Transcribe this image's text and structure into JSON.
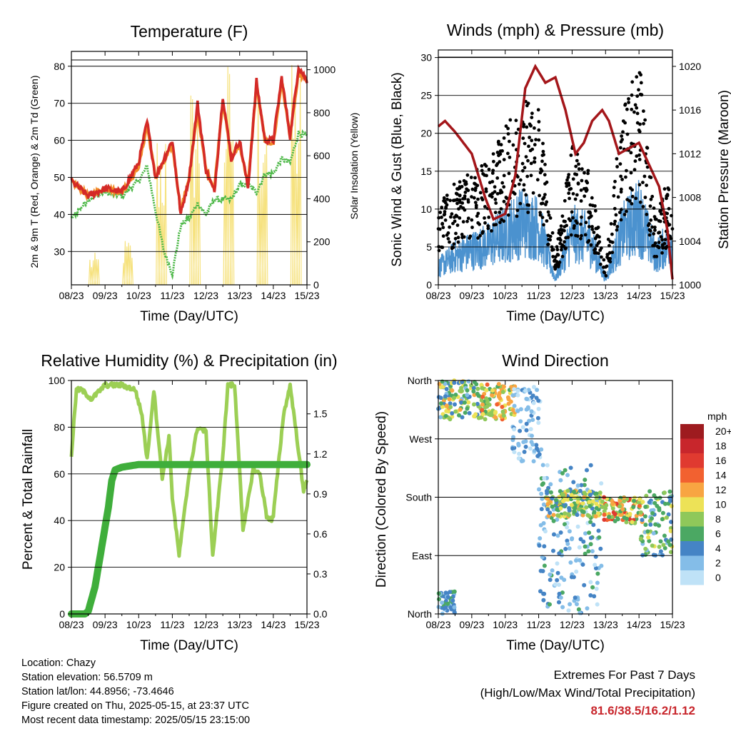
{
  "time_ticks": [
    "08/23",
    "09/23",
    "10/23",
    "11/23",
    "12/23",
    "13/23",
    "14/23",
    "15/23"
  ],
  "info": {
    "location": "Location: Chazy",
    "elevation": "Station elevation: 56.5709 m",
    "latlon": "Station lat/lon: 44.8956; -73.4646",
    "created": "Figure created on Thu, 2025-05-15, at 23:37 UTC",
    "recent": "Most recent data timestamp: 2025/05/15 23:15:00"
  },
  "extremes": {
    "title1": "Extremes For Past 7 Days",
    "title2": "(High/Low/Max Wind/Total Precipitation)",
    "values": "81.6/38.5/16.2/1.12"
  },
  "colors": {
    "temp_2m": "#d42a27",
    "temp_9m": "#f28c28",
    "dewpoint": "#4db848",
    "solar": "#f6e27f",
    "wind": "#4b92cf",
    "gust": "#000000",
    "pressure": "#a4161a",
    "rh": "#9ccf55",
    "precip": "#3fae3b"
  },
  "chart_data": [
    {
      "type": "line",
      "title": "Temperature (F)",
      "xlabel": "Time (Day/UTC)",
      "ylabel": "2m & 9m T (Red, Orange) & 2m Td (Green)",
      "ylabel_right": "Solar Insolation (Yellow)",
      "ylim": [
        21,
        84
      ],
      "yticks": [
        30,
        40,
        50,
        60,
        70,
        80
      ],
      "ylim_right": [
        0,
        1085
      ],
      "yticks_right": [
        0,
        200,
        400,
        600,
        800,
        1000
      ],
      "x_days": [
        0,
        0.5,
        1,
        1.5,
        2,
        2.25,
        2.5,
        2.75,
        3,
        3.25,
        3.5,
        3.75,
        4,
        4.25,
        4.5,
        4.75,
        5,
        5.25,
        5.5,
        5.75,
        6,
        6.25,
        6.5,
        6.75,
        7
      ],
      "series": [
        {
          "name": "2m T",
          "values": [
            49,
            45,
            47,
            46,
            54,
            65,
            50,
            55,
            60,
            40,
            50,
            70,
            52,
            46,
            72,
            55,
            60,
            47,
            76,
            60,
            60,
            77,
            61,
            80,
            76
          ]
        },
        {
          "name": "9m T",
          "values": [
            49,
            45,
            47,
            46,
            53,
            64,
            50,
            54,
            59,
            41,
            50,
            68,
            52,
            47,
            71,
            55,
            59,
            48,
            75,
            60,
            59,
            76,
            61,
            78,
            76
          ]
        },
        {
          "name": "2m Td",
          "values": [
            39,
            44,
            46,
            45,
            49,
            53,
            41,
            30,
            24,
            37,
            39,
            43,
            40,
            44,
            44,
            44,
            48,
            48,
            46,
            51,
            51,
            55,
            54,
            62,
            61
          ]
        },
        {
          "name": "Solar",
          "daily_peak": [
            150,
            220,
            760,
            960,
            1070,
            1020,
            1040,
            1000
          ]
        }
      ]
    },
    {
      "type": "scatter",
      "title": "Winds (mph) & Pressure (mb)",
      "xlabel": "Time (Day/UTC)",
      "ylabel": "Sonic Wind & Gust (Blue, Black)",
      "ylabel_right": "Station Pressure (Maroon)",
      "ylim": [
        0,
        31
      ],
      "yticks": [
        0,
        5,
        10,
        15,
        20,
        25,
        30
      ],
      "ylim_right": [
        1000,
        1021.5
      ],
      "yticks_right": [
        1000,
        1004,
        1008,
        1012,
        1016,
        1020
      ],
      "pressure": {
        "x_days": [
          0,
          0.2,
          0.5,
          1,
          1.4,
          1.65,
          2,
          2.3,
          2.6,
          2.9,
          3.2,
          3.5,
          3.8,
          4.1,
          4.35,
          4.6,
          4.9,
          5.1,
          5.4,
          5.7,
          6,
          6.3,
          6.6,
          6.85,
          7
        ],
        "values": [
          1014.5,
          1015,
          1014,
          1012,
          1008,
          1006,
          1006.5,
          1010,
          1018,
          1020,
          1018.5,
          1019,
          1016,
          1012,
          1013,
          1015,
          1016,
          1015,
          1012,
          1012.5,
          1013,
          1011,
          1009,
          1005,
          1000.5
        ]
      },
      "wind_envelope": {
        "x_days": [
          0,
          0.5,
          1,
          1.5,
          2,
          2.5,
          3,
          3.5,
          4,
          4.5,
          5,
          5.5,
          6,
          6.5,
          7
        ],
        "values": [
          3,
          5,
          6,
          7,
          9,
          11,
          10,
          1,
          9,
          8,
          1,
          9,
          12,
          5,
          8
        ]
      },
      "gust_envelope": {
        "x_days": [
          0,
          0.5,
          1,
          1.5,
          2,
          2.5,
          3,
          3.5,
          4,
          4.5,
          5,
          5.5,
          6,
          6.5,
          7
        ],
        "values": [
          9,
          11,
          12,
          13,
          17,
          20,
          19,
          3,
          15,
          12,
          2,
          19,
          24,
          7,
          13
        ]
      }
    },
    {
      "type": "line",
      "title": "Relative Humidity (%) & Precipitation (in)",
      "xlabel": "Time (Day/UTC)",
      "ylabel": "Percent & Total Rainfall",
      "ylim": [
        0,
        100
      ],
      "yticks": [
        0,
        20,
        40,
        60,
        80,
        100
      ],
      "ylim_right": [
        0.0,
        1.75
      ],
      "yticks_right": [
        "0.0",
        "0.3",
        "0.6",
        "0.9",
        "1.2",
        "1.5"
      ],
      "series": [
        {
          "name": "RH",
          "x_days": [
            0,
            0.15,
            0.3,
            0.6,
            1,
            1.5,
            1.9,
            2.1,
            2.25,
            2.45,
            2.7,
            2.9,
            3,
            3.2,
            3.5,
            3.75,
            4,
            4.2,
            4.5,
            4.65,
            4.85,
            5,
            5.1,
            5.4,
            5.6,
            5.8,
            5.95,
            6,
            6.3,
            6.5,
            6.75,
            6.9,
            7
          ],
          "values": [
            68,
            96,
            96,
            92,
            98,
            98,
            96,
            85,
            66,
            96,
            58,
            76,
            50,
            25,
            60,
            80,
            78,
            25,
            68,
            98,
            98,
            62,
            35,
            62,
            60,
            42,
            40,
            42,
            85,
            98,
            70,
            52,
            58
          ]
        },
        {
          "name": "Precipitation",
          "x_days": [
            0,
            0.4,
            0.5,
            0.7,
            0.9,
            1.1,
            1.2,
            1.3,
            1.5,
            2,
            3,
            4,
            5,
            6,
            7
          ],
          "values": [
            0,
            0,
            0.02,
            0.2,
            0.5,
            0.8,
            1.0,
            1.08,
            1.1,
            1.12,
            1.12,
            1.12,
            1.12,
            1.12,
            1.12
          ]
        }
      ]
    },
    {
      "type": "scatter",
      "title": "Wind Direction",
      "xlabel": "Time (Day/UTC)",
      "ylabel": "Direction (Colored By Speed)",
      "ylim": [
        0,
        360
      ],
      "ytick_labels": [
        "North",
        "East",
        "South",
        "West",
        "North"
      ],
      "ytick_values": [
        0,
        90,
        180,
        270,
        360
      ],
      "legend": {
        "title": "mph",
        "labels": [
          "20+",
          "18",
          "16",
          "14",
          "12",
          "10",
          "8",
          "6",
          "4",
          "2",
          "0"
        ],
        "colors": [
          "#9e1b1f",
          "#c8262c",
          "#e03a30",
          "#f26130",
          "#f8a542",
          "#ede257",
          "#8fc85a",
          "#4ba863",
          "#4584c5",
          "#84bde8",
          "#bfe2f7"
        ]
      },
      "clusters": [
        {
          "x_days": [
            0.0,
            1.3
          ],
          "dir": [
            300,
            360
          ],
          "speed": [
            2,
            12
          ]
        },
        {
          "x_days": [
            1.3,
            2.3
          ],
          "dir": [
            300,
            355
          ],
          "speed": [
            6,
            14
          ]
        },
        {
          "x_days": [
            2.2,
            3.1
          ],
          "dir": [
            235,
            350
          ],
          "speed": [
            0,
            4
          ]
        },
        {
          "x_days": [
            3.0,
            4.9
          ],
          "dir": [
            0,
            230
          ],
          "speed": [
            0,
            6
          ]
        },
        {
          "x_days": [
            3.2,
            4.9
          ],
          "dir": [
            150,
            190
          ],
          "speed": [
            4,
            12
          ]
        },
        {
          "x_days": [
            4.9,
            6.1
          ],
          "dir": [
            140,
            180
          ],
          "speed": [
            6,
            16
          ]
        },
        {
          "x_days": [
            6.0,
            7.0
          ],
          "dir": [
            90,
            190
          ],
          "speed": [
            2,
            10
          ]
        },
        {
          "x_days": [
            0.0,
            0.5
          ],
          "dir": [
            0,
            35
          ],
          "speed": [
            2,
            6
          ]
        }
      ]
    }
  ]
}
